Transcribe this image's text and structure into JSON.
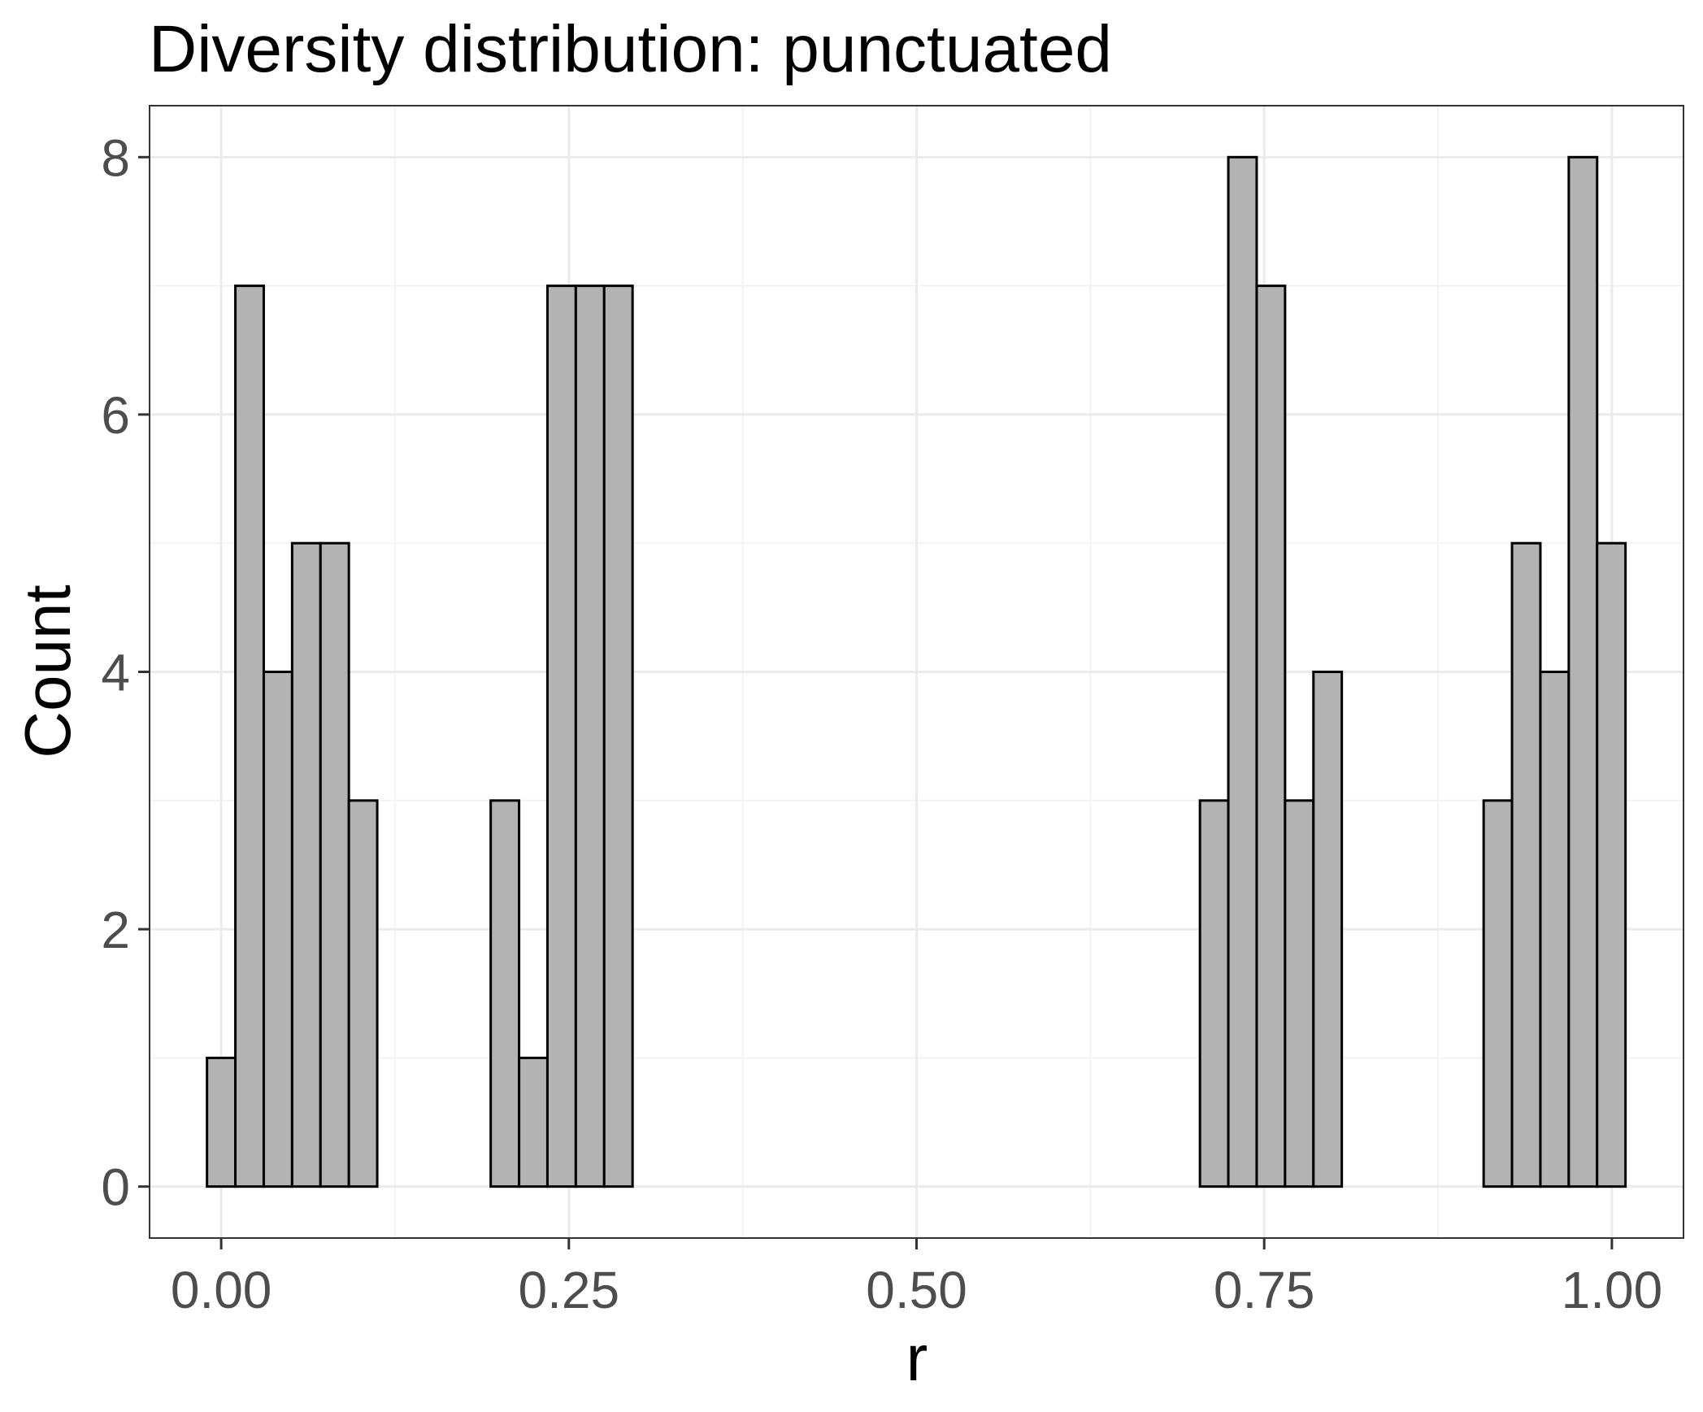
{
  "chart_data": {
    "type": "bar",
    "title": "Diversity distribution: punctuated",
    "xlabel": "r",
    "ylabel": "Count",
    "xlim": [
      -0.0515,
      1.0515
    ],
    "ylim": [
      -0.4,
      8.4
    ],
    "x_ticks": [
      0.0,
      0.25,
      0.5,
      0.75,
      1.0
    ],
    "x_tick_labels": [
      "0.00",
      "0.25",
      "0.50",
      "0.75",
      "1.00"
    ],
    "y_ticks": [
      0,
      2,
      4,
      6,
      8
    ],
    "y_tick_labels": [
      "0",
      "2",
      "4",
      "6",
      "8"
    ],
    "grid": true,
    "legend": "none",
    "bin_width": 0.0204,
    "bin_start": -0.0102,
    "counts": [
      1,
      7,
      4,
      5,
      5,
      3,
      0,
      0,
      0,
      0,
      3,
      1,
      7,
      7,
      7,
      0,
      0,
      0,
      0,
      0,
      0,
      0,
      0,
      0,
      0,
      0,
      0,
      0,
      0,
      0,
      0,
      0,
      0,
      0,
      0,
      3,
      8,
      7,
      3,
      4,
      0,
      0,
      0,
      0,
      0,
      3,
      5,
      4,
      8,
      5
    ],
    "colors": {
      "fill": "#b3b3b3",
      "stroke": "#000000",
      "panel_border": "#333333",
      "grid_major": "#ebebeb",
      "grid_minor": "#f3f3f3"
    }
  }
}
